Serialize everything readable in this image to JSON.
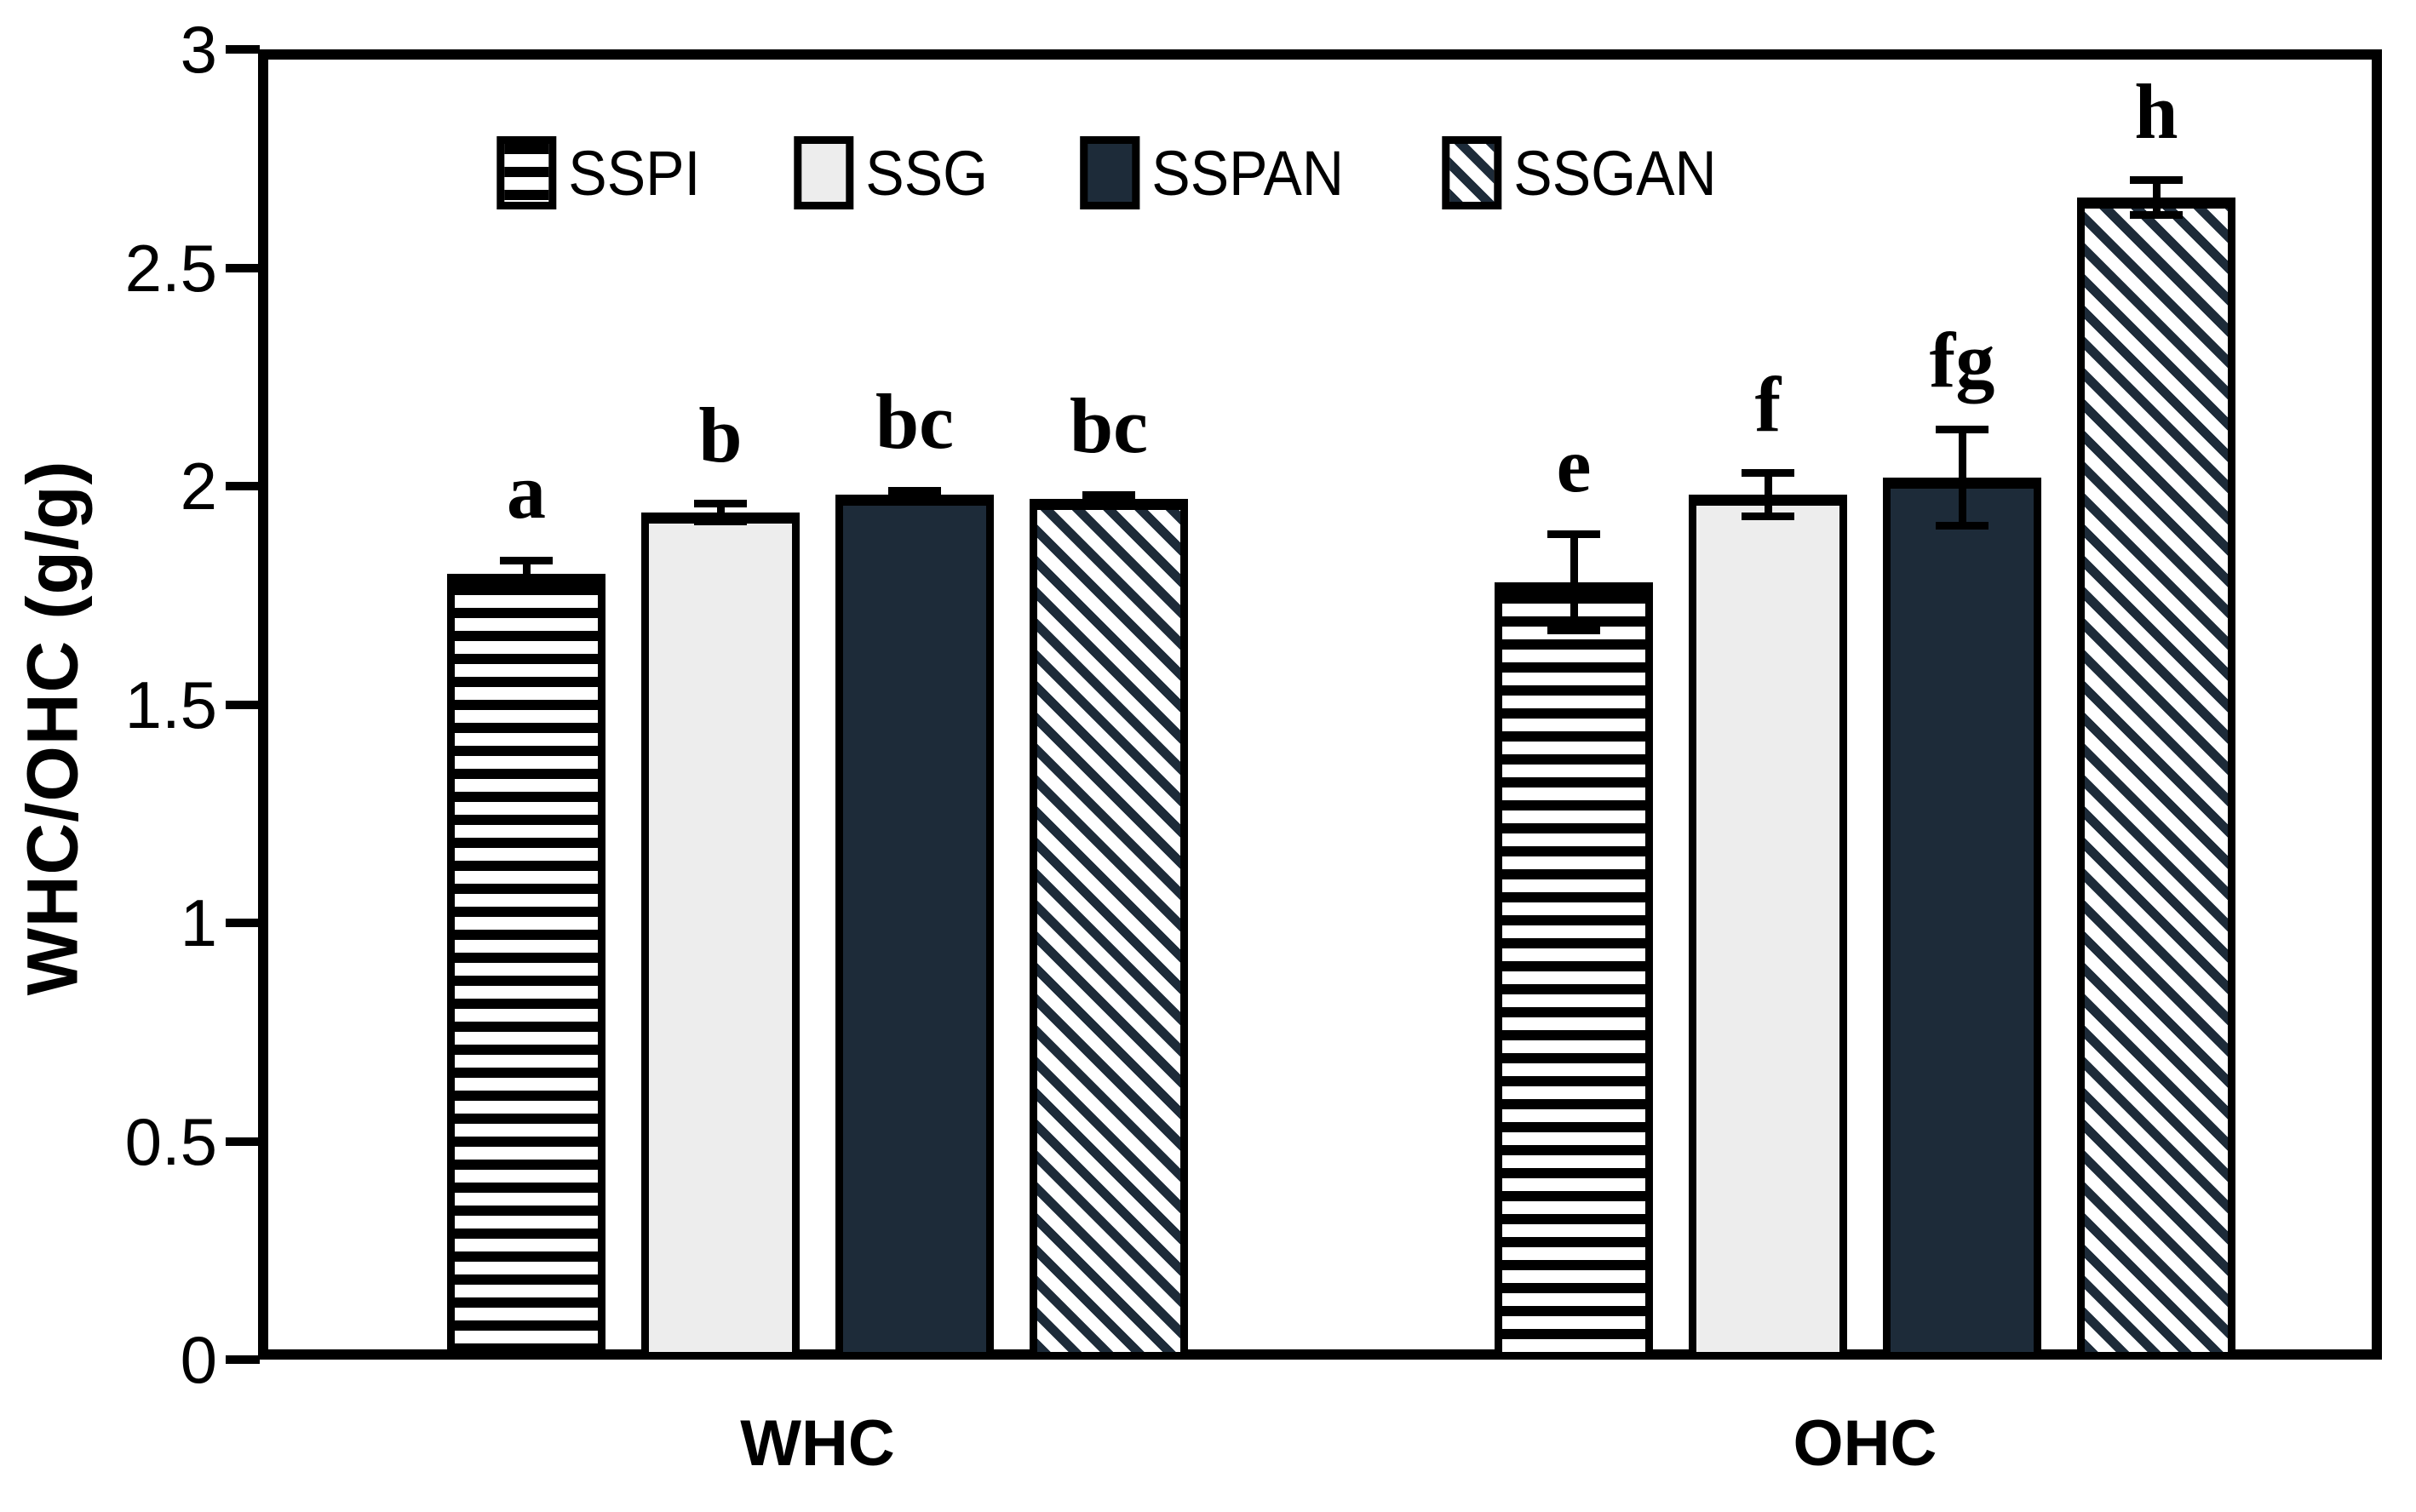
{
  "chart_data": {
    "type": "bar",
    "title": "",
    "xlabel": "",
    "ylabel": "WHC/OHC (g/g)",
    "ylim": [
      0,
      3
    ],
    "yticks": [
      0,
      0.5,
      1,
      1.5,
      2,
      2.5,
      3
    ],
    "ytick_labels": [
      "0",
      "0.5",
      "1",
      "1.5",
      "2",
      "2.5",
      "3"
    ],
    "categories": [
      "WHC",
      "OHC"
    ],
    "grid": false,
    "legend_position": "top-center",
    "error_bars": true,
    "series": [
      {
        "name": "SSPI",
        "pattern": "horizontal-stripes",
        "stripe_color": "#000000",
        "values": [
          1.8,
          1.78
        ],
        "errors": [
          0.03,
          0.11
        ],
        "sig_letters": [
          "a",
          "e"
        ]
      },
      {
        "name": "SSG",
        "pattern": "solid-light",
        "fill": "#ededed",
        "values": [
          1.94,
          1.98
        ],
        "errors": [
          0.02,
          0.05
        ],
        "sig_letters": [
          "b",
          "f"
        ]
      },
      {
        "name": "SSPAN",
        "pattern": "solid-dark",
        "fill": "#1d2b39",
        "values": [
          1.98,
          2.02
        ],
        "errors": [
          0.01,
          0.11
        ],
        "sig_letters": [
          "bc",
          "fg"
        ]
      },
      {
        "name": "SSGAN",
        "pattern": "diagonal-stripes",
        "stripe_color": "#1d2b39",
        "values": [
          1.97,
          2.66
        ],
        "errors": [
          0.01,
          0.04
        ],
        "sig_letters": [
          "bc",
          "h"
        ]
      }
    ],
    "colors": {
      "axis": "#000000",
      "dark_navy": "#1d2b39",
      "light_gray": "#ededed",
      "background": "#ffffff"
    }
  }
}
